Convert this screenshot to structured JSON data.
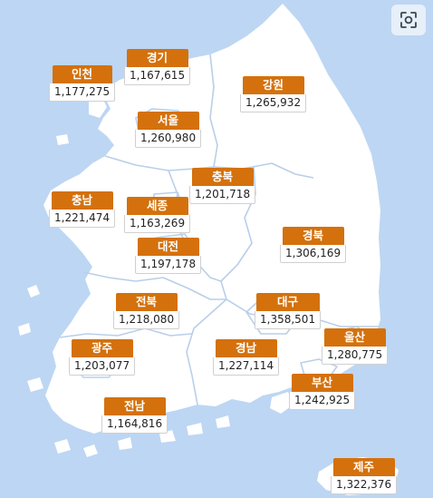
{
  "colors": {
    "sea": "#bdd6f3",
    "land": "#ffffff",
    "label_bg": "#d4710c",
    "label_text": "#ffffff",
    "border": "#b9cfe9"
  },
  "controls": {
    "reset_view": {
      "icon": "focus-frame-icon"
    }
  },
  "regions": [
    {
      "id": "incheon",
      "name": "인천",
      "value": "1,177,275"
    },
    {
      "id": "gyeonggi",
      "name": "경기",
      "value": "1,167,615"
    },
    {
      "id": "gangwon",
      "name": "강원",
      "value": "1,265,932"
    },
    {
      "id": "seoul",
      "name": "서울",
      "value": "1,260,980"
    },
    {
      "id": "chungbuk",
      "name": "충북",
      "value": "1,201,718"
    },
    {
      "id": "chungnam",
      "name": "충남",
      "value": "1,221,474"
    },
    {
      "id": "sejong",
      "name": "세종",
      "value": "1,163,269"
    },
    {
      "id": "gyeongbuk",
      "name": "경북",
      "value": "1,306,169"
    },
    {
      "id": "daejeon",
      "name": "대전",
      "value": "1,197,178"
    },
    {
      "id": "jeonbuk",
      "name": "전북",
      "value": "1,218,080"
    },
    {
      "id": "daegu",
      "name": "대구",
      "value": "1,358,501"
    },
    {
      "id": "ulsan",
      "name": "울산",
      "value": "1,280,775"
    },
    {
      "id": "gwangju",
      "name": "광주",
      "value": "1,203,077"
    },
    {
      "id": "gyeongnam",
      "name": "경남",
      "value": "1,227,114"
    },
    {
      "id": "busan",
      "name": "부산",
      "value": "1,242,925"
    },
    {
      "id": "jeonnam",
      "name": "전남",
      "value": "1,164,816"
    },
    {
      "id": "jeju",
      "name": "제주",
      "value": "1,322,376"
    }
  ]
}
